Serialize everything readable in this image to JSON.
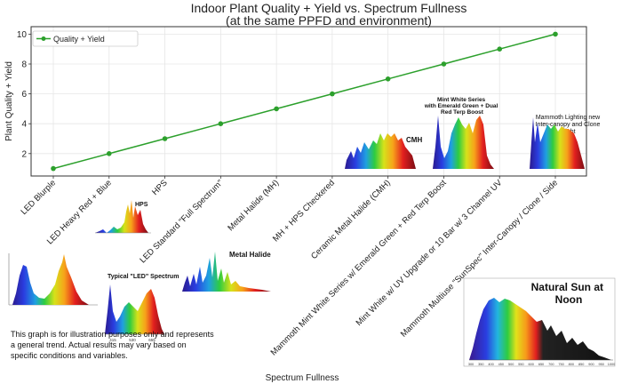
{
  "chart_data": {
    "type": "line",
    "title": "Indoor Plant Quality + Yield vs. Spectrum Fullness",
    "subtitle": "(at the same PPFD and environment)",
    "xlabel": "Spectrum Fullness",
    "ylabel": "Plant Quality + Yield",
    "ylim": [
      0.5,
      10.5
    ],
    "yticks": [
      2,
      4,
      6,
      8,
      10
    ],
    "grid": true,
    "legend_position": "top-left",
    "categories": [
      "LED Blurple",
      "LED Heavy Red + Blue",
      "HPS",
      "LED Standard \"Full Spectrum\"",
      "Metal Halide (MH)",
      "MH + HPS Checkered",
      "Ceramic Metal Halide (CMH)",
      "Mammoth Mint White Series w/ Emerald Green + Red Terp Boost",
      "Mint White w/ UV Upgrade or 10 Bar w/ 3 Channel UV",
      "Mammoth Multiuse \"SunSpec\" Inter-Canopy / Clone / Side"
    ],
    "series": [
      {
        "name": "Quality + Yield",
        "color": "#2ca02c",
        "values": [
          1,
          2,
          3,
          4,
          5,
          6,
          7,
          8,
          9,
          10
        ]
      }
    ]
  },
  "insets": {
    "hps": "HPS",
    "led_standard": "Typical \"LED\" Spectrum",
    "metal_halide": "Metal Halide",
    "cmh": "CMH",
    "mint_white": "Mint White Series with Emerald Green + Dual Red Terp Boost",
    "mammoth": "Mammoth Lighting new Inter-canopy and Clone Light",
    "sun": "Natural Sun at Noon",
    "led_ticks": [
      "415",
      "530",
      "655"
    ],
    "sun_axis": [
      "300",
      "350",
      "400",
      "450",
      "500",
      "550",
      "600",
      "650",
      "700",
      "750",
      "800",
      "850",
      "900",
      "950",
      "1000"
    ]
  },
  "footnote": "This graph is for illustration purposes only and represents a general trend. Actual results may vary based on specific conditions and variables."
}
